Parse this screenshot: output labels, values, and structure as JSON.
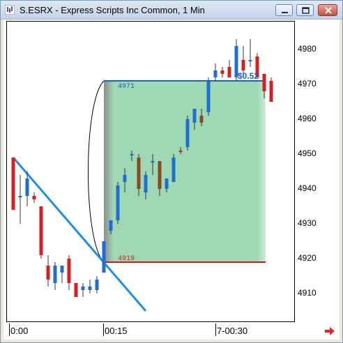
{
  "window": {
    "title": "S.ESRX - Express Scripts Inc Common, 1 Min"
  },
  "chart_data": {
    "type": "candlestick",
    "title": "S.ESRX - Express Scripts Inc Common, 1 Min",
    "y_ticks": [
      4910,
      4920,
      4930,
      4940,
      4950,
      4960,
      4970,
      4980
    ],
    "ylim": [
      4902,
      4988
    ],
    "x_tick_labels": [
      "0:00",
      "00:15",
      "7-00:30"
    ],
    "candles": [
      {
        "o": 4949,
        "h": 4949,
        "l": 4934,
        "c": 4934,
        "color": "red"
      },
      {
        "o": 4938,
        "h": 4944,
        "l": 4930,
        "c": 4938,
        "color": "blue"
      },
      {
        "o": 4943,
        "h": 4945,
        "l": 4935,
        "c": 4938,
        "color": "blue"
      },
      {
        "o": 4937,
        "h": 4939,
        "l": 4936,
        "c": 4938,
        "color": "red"
      },
      {
        "o": 4935,
        "h": 4935,
        "l": 4920,
        "c": 4921,
        "color": "red"
      },
      {
        "o": 4918,
        "h": 4921,
        "l": 4912,
        "c": 4914,
        "color": "red"
      },
      {
        "o": 4913,
        "h": 4919,
        "l": 4911,
        "c": 4918,
        "color": "blue"
      },
      {
        "o": 4916,
        "h": 4918,
        "l": 4913,
        "c": 4918,
        "color": "blue"
      },
      {
        "o": 4920,
        "h": 4921,
        "l": 4911,
        "c": 4913,
        "color": "red"
      },
      {
        "o": 4913,
        "h": 4913,
        "l": 4909,
        "c": 4909,
        "color": "red"
      },
      {
        "o": 4912,
        "h": 4913,
        "l": 4909,
        "c": 4911,
        "color": "blue"
      },
      {
        "o": 4911,
        "h": 4914,
        "l": 4910,
        "c": 4912,
        "color": "blue"
      },
      {
        "o": 4911,
        "h": 4915,
        "l": 4910,
        "c": 4914,
        "color": "blue"
      },
      {
        "o": 4916,
        "h": 4925,
        "l": 4916,
        "c": 4925,
        "color": "blue"
      },
      {
        "o": 4928,
        "h": 4931,
        "l": 4927,
        "c": 4931,
        "color": "blue"
      },
      {
        "o": 4931,
        "h": 4942,
        "l": 4930,
        "c": 4941,
        "color": "blue"
      },
      {
        "o": 4942,
        "h": 4946,
        "l": 4939,
        "c": 4944,
        "color": "blue"
      },
      {
        "o": 4950,
        "h": 4951,
        "l": 4948,
        "c": 4950,
        "color": "blue"
      },
      {
        "o": 4949,
        "h": 4950,
        "l": 4938,
        "c": 4940,
        "color": "brown"
      },
      {
        "o": 4939,
        "h": 4945,
        "l": 4937,
        "c": 4944,
        "color": "blue"
      },
      {
        "o": 4948,
        "h": 4950,
        "l": 4944,
        "c": 4948,
        "color": "blue"
      },
      {
        "o": 4948,
        "h": 4948,
        "l": 4938,
        "c": 4940,
        "color": "brown"
      },
      {
        "o": 4940,
        "h": 4943,
        "l": 4939,
        "c": 4943,
        "color": "blue"
      },
      {
        "o": 4942,
        "h": 4950,
        "l": 4942,
        "c": 4949,
        "color": "blue"
      },
      {
        "o": 4951,
        "h": 4952,
        "l": 4950,
        "c": 4951,
        "color": "red"
      },
      {
        "o": 4952,
        "h": 4961,
        "l": 4951,
        "c": 4960,
        "color": "blue"
      },
      {
        "o": 4959,
        "h": 4963,
        "l": 4957,
        "c": 4963,
        "color": "blue"
      },
      {
        "o": 4961,
        "h": 4963,
        "l": 4958,
        "c": 4959,
        "color": "brown"
      },
      {
        "o": 4962,
        "h": 4972,
        "l": 4961,
        "c": 4971,
        "color": "blue"
      },
      {
        "o": 4972,
        "h": 4976,
        "l": 4971,
        "c": 4974,
        "color": "blue"
      },
      {
        "o": 4973,
        "h": 4975,
        "l": 4972,
        "c": 4974,
        "color": "red"
      },
      {
        "o": 4975,
        "h": 4977,
        "l": 4972,
        "c": 4972,
        "color": "red"
      },
      {
        "o": 4972,
        "h": 4983,
        "l": 4971,
        "c": 4981,
        "color": "blue"
      },
      {
        "o": 4977,
        "h": 4981,
        "l": 4973,
        "c": 4974,
        "color": "red"
      },
      {
        "o": 4977,
        "h": 4983,
        "l": 4975,
        "c": 4977,
        "color": "blue"
      },
      {
        "o": 4978,
        "h": 4979,
        "l": 4972,
        "c": 4972,
        "color": "red"
      },
      {
        "o": 4973,
        "h": 4973,
        "l": 4966,
        "c": 4968,
        "color": "red"
      },
      {
        "o": 4971,
        "h": 4972,
        "l": 4965,
        "c": 4965,
        "color": "red"
      }
    ],
    "overlays": {
      "zone": {
        "top": 4971,
        "bottom": 4919,
        "color": "#9fd8b4"
      },
      "top_label": "4971",
      "bottom_label": "4919",
      "change_label": "$0.52",
      "trendline": {
        "start": 4949,
        "end": 4905,
        "color": "#1e8fe8"
      }
    }
  },
  "colors": {
    "up": "#1f6fd0",
    "down": "#d92020",
    "brown": "#8b4a1c",
    "zone_top": "#1f5fc8",
    "zone_bottom": "#c81e1e"
  }
}
